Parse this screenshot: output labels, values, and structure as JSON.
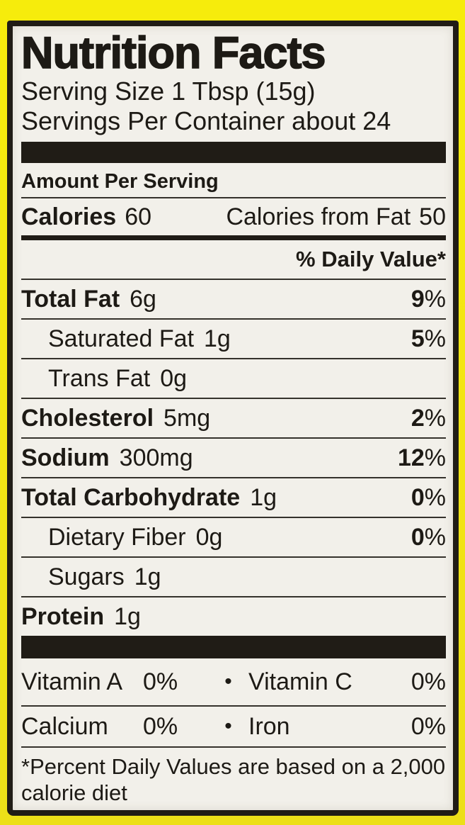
{
  "colors": {
    "background_yellow": "#f2e414",
    "label_background": "#f2f0ea",
    "ink": "#201c16",
    "rule": "#35322c"
  },
  "label": {
    "title": "Nutrition Facts",
    "serving_size": "Serving Size 1 Tbsp (15g)",
    "servings_per_container": "Servings Per Container about 24",
    "amount_per_serving": "Amount Per Serving",
    "calories": {
      "label": "Calories",
      "value": "60",
      "from_fat_label": "Calories from Fat",
      "from_fat_value": "50"
    },
    "daily_value_header": "% Daily Value*",
    "nutrients": [
      {
        "name": "Total Fat",
        "amount": "6g",
        "dv_number": "9",
        "dv_sign": "%"
      },
      {
        "name": "Saturated Fat",
        "amount": "1g",
        "dv_number": "5",
        "dv_sign": "%"
      },
      {
        "name": "Trans Fat",
        "amount": "0g",
        "dv_number": "",
        "dv_sign": ""
      },
      {
        "name": "Cholesterol",
        "amount": "5mg",
        "dv_number": "2",
        "dv_sign": "%"
      },
      {
        "name": "Sodium",
        "amount": "300mg",
        "dv_number": "12",
        "dv_sign": "%"
      },
      {
        "name": "Total Carbohydrate",
        "amount": "1g",
        "dv_number": "0",
        "dv_sign": "%"
      },
      {
        "name": "Dietary Fiber",
        "amount": "0g",
        "dv_number": "0",
        "dv_sign": "%"
      },
      {
        "name": "Sugars",
        "amount": "1g",
        "dv_number": "",
        "dv_sign": ""
      },
      {
        "name": "Protein",
        "amount": "1g",
        "dv_number": "",
        "dv_sign": ""
      }
    ],
    "bullet": "•",
    "vitamins": [
      {
        "left_name": "Vitamin A",
        "left_value": "0%",
        "right_name": "Vitamin C",
        "right_value": "0%"
      },
      {
        "left_name": "Calcium",
        "left_value": "0%",
        "right_name": "Iron",
        "right_value": "0%"
      }
    ],
    "footnote_line1": "*Percent Daily Values are based on a 2,000",
    "footnote_line2": "calorie diet"
  }
}
